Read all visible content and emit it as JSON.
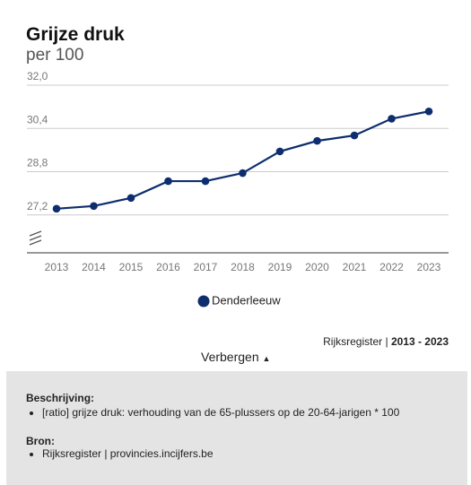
{
  "chart_data": {
    "type": "line",
    "title": "Grijze druk",
    "subtitle": "per 100",
    "categories": [
      "2013",
      "2014",
      "2015",
      "2016",
      "2017",
      "2018",
      "2019",
      "2020",
      "2021",
      "2022",
      "2023"
    ],
    "series": [
      {
        "name": "Denderleeuw",
        "color": "#0d2d6e",
        "values": [
          27.43,
          27.53,
          27.83,
          28.45,
          28.45,
          28.75,
          29.55,
          29.94,
          30.14,
          30.76,
          31.03
        ]
      }
    ],
    "ylim": [
      25.8,
      32.0
    ],
    "yticks": [
      {
        "value": 27.2,
        "label": "27,2"
      },
      {
        "value": 28.8,
        "label": "28,8"
      },
      {
        "value": 30.4,
        "label": "30,4"
      },
      {
        "value": 32.0,
        "label": "32,0"
      }
    ],
    "grid": true
  },
  "source": "Rijksregister |",
  "period": "2013 - 2023",
  "toggle": "Verbergen",
  "description": {
    "heading": "Beschrijving:",
    "items": [
      "[ratio] grijze druk: verhouding van de 65-plussers op de 20-64-jarigen * 100"
    ]
  },
  "bron": {
    "heading": "Bron:",
    "items": [
      "Rijksregister | provincies.incijfers.be"
    ]
  }
}
